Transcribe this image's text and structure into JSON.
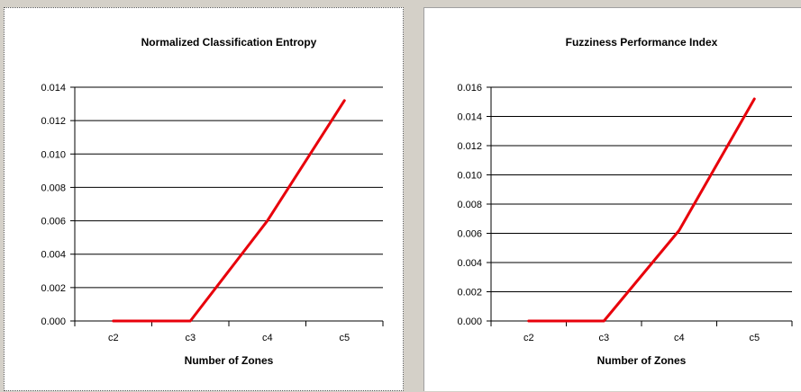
{
  "chart_data": [
    {
      "type": "line",
      "title": "Normalized Classification Entropy",
      "xlabel": "Number of Zones",
      "ylabel": "",
      "categories": [
        "c2",
        "c3",
        "c4",
        "c5"
      ],
      "series": [
        {
          "values": [
            0.0,
            0.0,
            0.006,
            0.0132
          ],
          "color": "#e8000b"
        }
      ],
      "ylim": [
        0,
        0.014
      ],
      "yticks": [
        "0.000",
        "0.002",
        "0.004",
        "0.006",
        "0.008",
        "0.010",
        "0.012",
        "0.014"
      ],
      "grid": true,
      "legend": "none"
    },
    {
      "type": "line",
      "title": "Fuzziness Performance Index",
      "xlabel": "Number of Zones",
      "ylabel": "",
      "categories": [
        "c2",
        "c3",
        "c4",
        "c5"
      ],
      "series": [
        {
          "values": [
            0.0,
            0.0,
            0.0062,
            0.0152
          ],
          "color": "#e8000b"
        }
      ],
      "ylim": [
        0,
        0.016
      ],
      "yticks": [
        "0.000",
        "0.002",
        "0.004",
        "0.006",
        "0.008",
        "0.010",
        "0.012",
        "0.014",
        "0.016"
      ],
      "grid": true,
      "legend": "none"
    }
  ]
}
